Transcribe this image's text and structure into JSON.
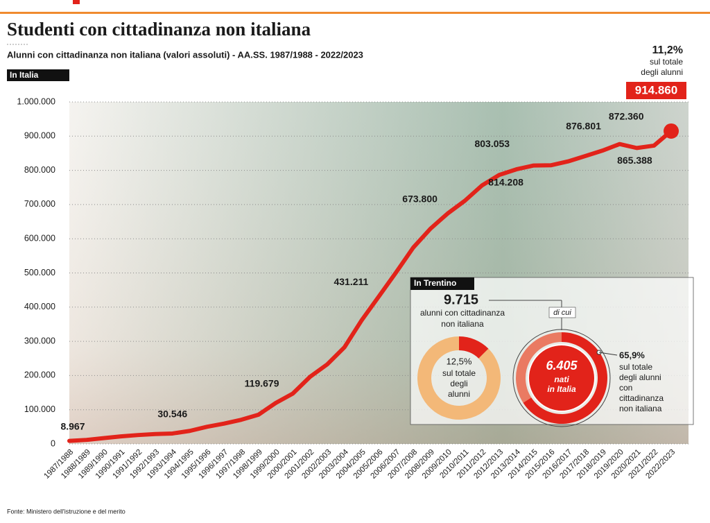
{
  "chart_data": {
    "type": "line",
    "title": "Studenti con cittadinanza non italiana",
    "subtitle": "Alunni con cittadinanza non italiana (valori assoluti) - AA.SS. 1987/1988 - 2022/2023",
    "region_label": "In Italia",
    "color": "#e2231a",
    "grid": true,
    "categories": [
      "1987/1988",
      "1988/1989",
      "1989/1990",
      "1990/1991",
      "1991/1992",
      "1992/1993",
      "1993/1994",
      "1994/1995",
      "1995/1996",
      "1996/1997",
      "1997/1998",
      "1998/1999",
      "1999/2000",
      "2000/2001",
      "2001/2002",
      "2002/2003",
      "2003/2004",
      "2004/2005",
      "2005/2006",
      "2006/2007",
      "2007/2008",
      "2008/2009",
      "2009/2010",
      "2010/2011",
      "2011/2012",
      "2012/2013",
      "2013/2014",
      "2014/2015",
      "2015/2016",
      "2016/2017",
      "2017/2018",
      "2018/2019",
      "2019/2020",
      "2020/2021",
      "2021/2022",
      "2022/2023"
    ],
    "values": [
      8967,
      11791,
      17000,
      22000,
      26000,
      29000,
      30546,
      38000,
      50000,
      59389,
      70657,
      85522,
      119679,
      147406,
      196414,
      232766,
      282683,
      361576,
      431211,
      501420,
      574133,
      629360,
      673800,
      711064,
      755939,
      786630,
      803053,
      814208,
      814851,
      826091,
      841719,
      857729,
      876801,
      865388,
      872360,
      914860
    ],
    "value_labels": [
      "8.967",
      null,
      null,
      null,
      null,
      null,
      "30.546",
      null,
      null,
      null,
      null,
      null,
      "119.679",
      null,
      null,
      null,
      null,
      null,
      "431.211",
      null,
      null,
      null,
      "673.800",
      null,
      null,
      null,
      "803.053",
      "814.208",
      null,
      null,
      null,
      null,
      "876.801",
      "865.388",
      "872.360",
      "914.860"
    ],
    "ylim": [
      0,
      1000000
    ],
    "yticks": [
      0,
      {
        "value": 100000,
        "label": "100.000"
      },
      {
        "value": 200000,
        "label": "200.000"
      },
      {
        "value": 300000,
        "label": "300.000"
      },
      {
        "value": 400000,
        "label": "400.000"
      },
      {
        "value": 500000,
        "label": "500.000"
      },
      {
        "value": 600000,
        "label": "600.000"
      },
      {
        "value": 700000,
        "label": "700.000"
      },
      {
        "value": 800000,
        "label": "800.000"
      },
      {
        "value": 900000,
        "label": "900.000"
      },
      {
        "value": 1000000,
        "label": "1.000.000"
      }
    ],
    "share_annotation": {
      "value": "11,2%",
      "lines": [
        "sul totale",
        "degli alunni"
      ]
    },
    "source": "Fonte: Ministero dell'istruzione e del merito"
  },
  "trentino": {
    "title": "In Trentino",
    "total": "9.715",
    "total_lines": [
      "alunni con cittadinanza",
      "non italiana"
    ],
    "share": 12.5,
    "share_label": "12,5%",
    "share_lines": [
      "sul totale",
      "degli",
      "alunni"
    ],
    "connector": "di cui",
    "born": "6.405",
    "born_lines": [
      "nati",
      "in Italia"
    ],
    "born_share": 65.9,
    "born_share_label": "65,9%",
    "born_share_lines": [
      "sul totale",
      "degli alunni",
      "con",
      "cittadinanza",
      "non italiana"
    ]
  }
}
